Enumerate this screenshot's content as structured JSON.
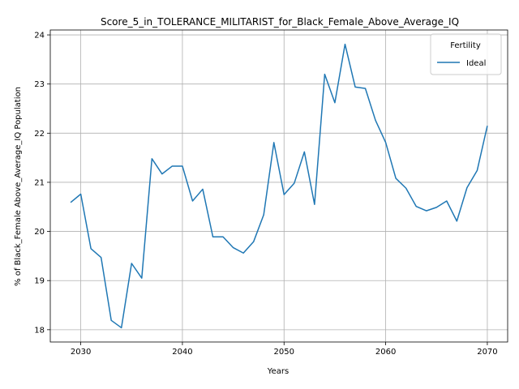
{
  "chart_data": {
    "type": "line",
    "title": "Score_5_in_TOLERANCE_MILITARIST_for_Black_Female_Above_Average_IQ",
    "xlabel": "Years",
    "ylabel": "% of Black_Female Above_Average_IQ Population",
    "xlim": [
      2027,
      2072
    ],
    "ylim": [
      17.75,
      24.1
    ],
    "x_ticks": [
      2030,
      2040,
      2050,
      2060,
      2070
    ],
    "y_ticks": [
      18,
      19,
      20,
      21,
      22,
      23,
      24
    ],
    "grid": true,
    "legend": {
      "title": "Fertility",
      "placement": "top-right"
    },
    "x": [
      2029,
      2030,
      2031,
      2032,
      2033,
      2034,
      2035,
      2036,
      2037,
      2038,
      2039,
      2040,
      2041,
      2042,
      2043,
      2044,
      2045,
      2046,
      2047,
      2048,
      2049,
      2050,
      2051,
      2052,
      2053,
      2054,
      2055,
      2056,
      2057,
      2058,
      2059,
      2060,
      2061,
      2062,
      2063,
      2064,
      2065,
      2066,
      2067,
      2068,
      2069,
      2070
    ],
    "series": [
      {
        "name": "Ideal",
        "color": "#1f77b4",
        "values": [
          20.59,
          20.76,
          19.65,
          19.47,
          18.19,
          18.04,
          19.35,
          19.05,
          21.48,
          21.17,
          21.33,
          21.33,
          20.62,
          20.86,
          19.89,
          19.89,
          19.67,
          19.56,
          19.79,
          20.34,
          21.81,
          20.75,
          20.98,
          21.62,
          20.55,
          23.2,
          22.62,
          23.81,
          22.94,
          22.91,
          22.26,
          21.81,
          21.08,
          20.88,
          20.51,
          20.42,
          20.49,
          20.62,
          20.21,
          20.89,
          21.24,
          22.15
        ]
      }
    ]
  }
}
